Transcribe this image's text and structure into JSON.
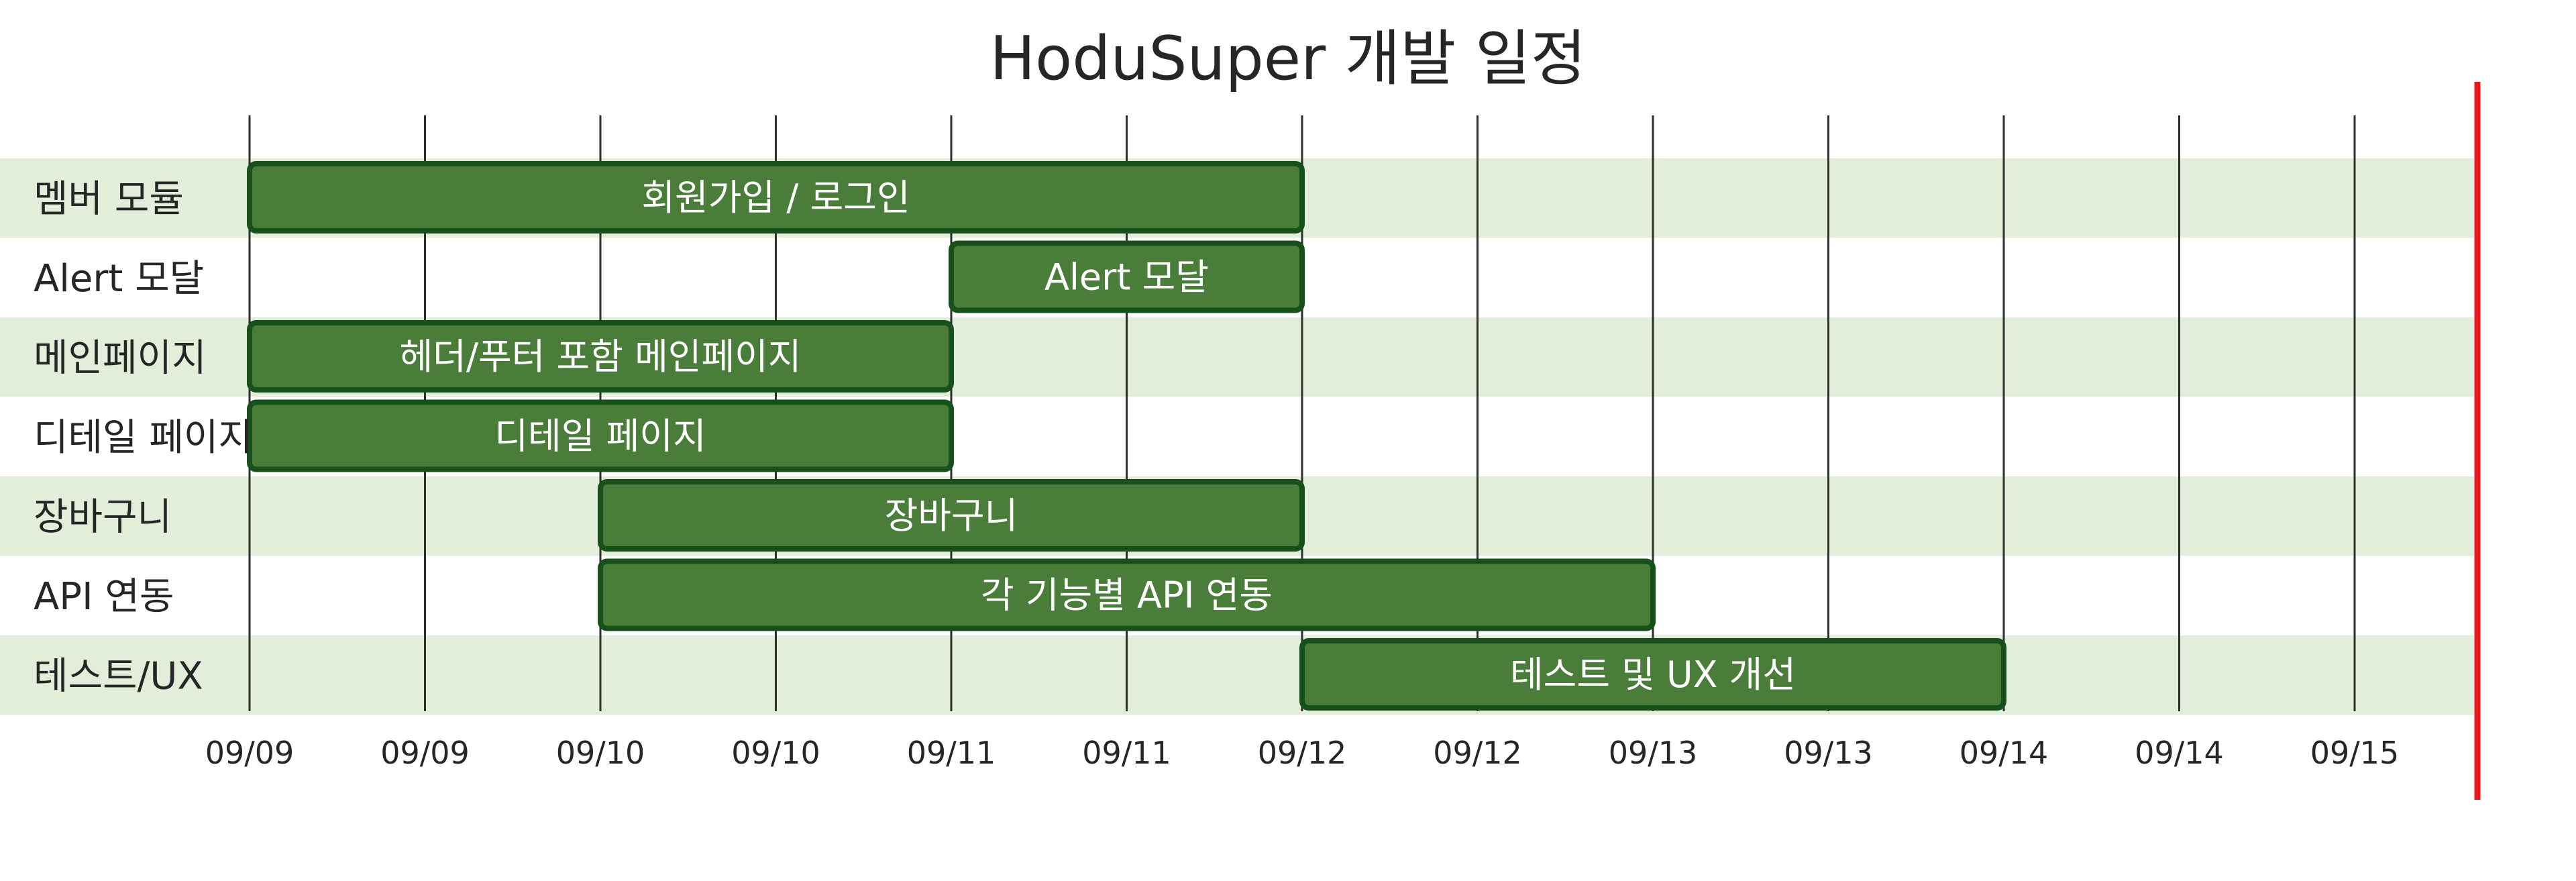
{
  "chart_data": {
    "type": "gantt",
    "title": "HoduSuper 개발 일정",
    "xlabel": "",
    "ylabel": "",
    "x_range": [
      0,
      12
    ],
    "x_ticks": [
      {
        "pos": 0,
        "label": "09/09"
      },
      {
        "pos": 1,
        "label": "09/09"
      },
      {
        "pos": 2,
        "label": "09/10"
      },
      {
        "pos": 3,
        "label": "09/10"
      },
      {
        "pos": 4,
        "label": "09/11"
      },
      {
        "pos": 5,
        "label": "09/11"
      },
      {
        "pos": 6,
        "label": "09/12"
      },
      {
        "pos": 7,
        "label": "09/12"
      },
      {
        "pos": 8,
        "label": "09/13"
      },
      {
        "pos": 9,
        "label": "09/13"
      },
      {
        "pos": 10,
        "label": "09/14"
      },
      {
        "pos": 11,
        "label": "09/14"
      },
      {
        "pos": 12,
        "label": "09/15"
      }
    ],
    "tasks": [
      {
        "category": "멤버 모듈",
        "label": "회원가입 / 로그인",
        "start": 0,
        "end": 6
      },
      {
        "category": "Alert 모달",
        "label": "Alert 모달",
        "start": 4,
        "end": 6
      },
      {
        "category": "메인페이지",
        "label": "헤더/푸터 포함 메인페이지",
        "start": 0,
        "end": 4
      },
      {
        "category": "디테일 페이지",
        "label": "디테일 페이지",
        "start": 0,
        "end": 4
      },
      {
        "category": "장바구니",
        "label": "장바구니",
        "start": 2,
        "end": 6
      },
      {
        "category": "API 연동",
        "label": "각 기능별 API 연동",
        "start": 2,
        "end": 8
      },
      {
        "category": "테스트/UX",
        "label": "테스트 및 UX 개선",
        "start": 6,
        "end": 10
      }
    ],
    "today_marker": 12.7,
    "colors": {
      "bar_fill": "#4a7d3a",
      "bar_stroke": "#17501a",
      "band": "#e2eed9",
      "grid": "#2f2f2f",
      "marker": "#e8191c"
    }
  }
}
